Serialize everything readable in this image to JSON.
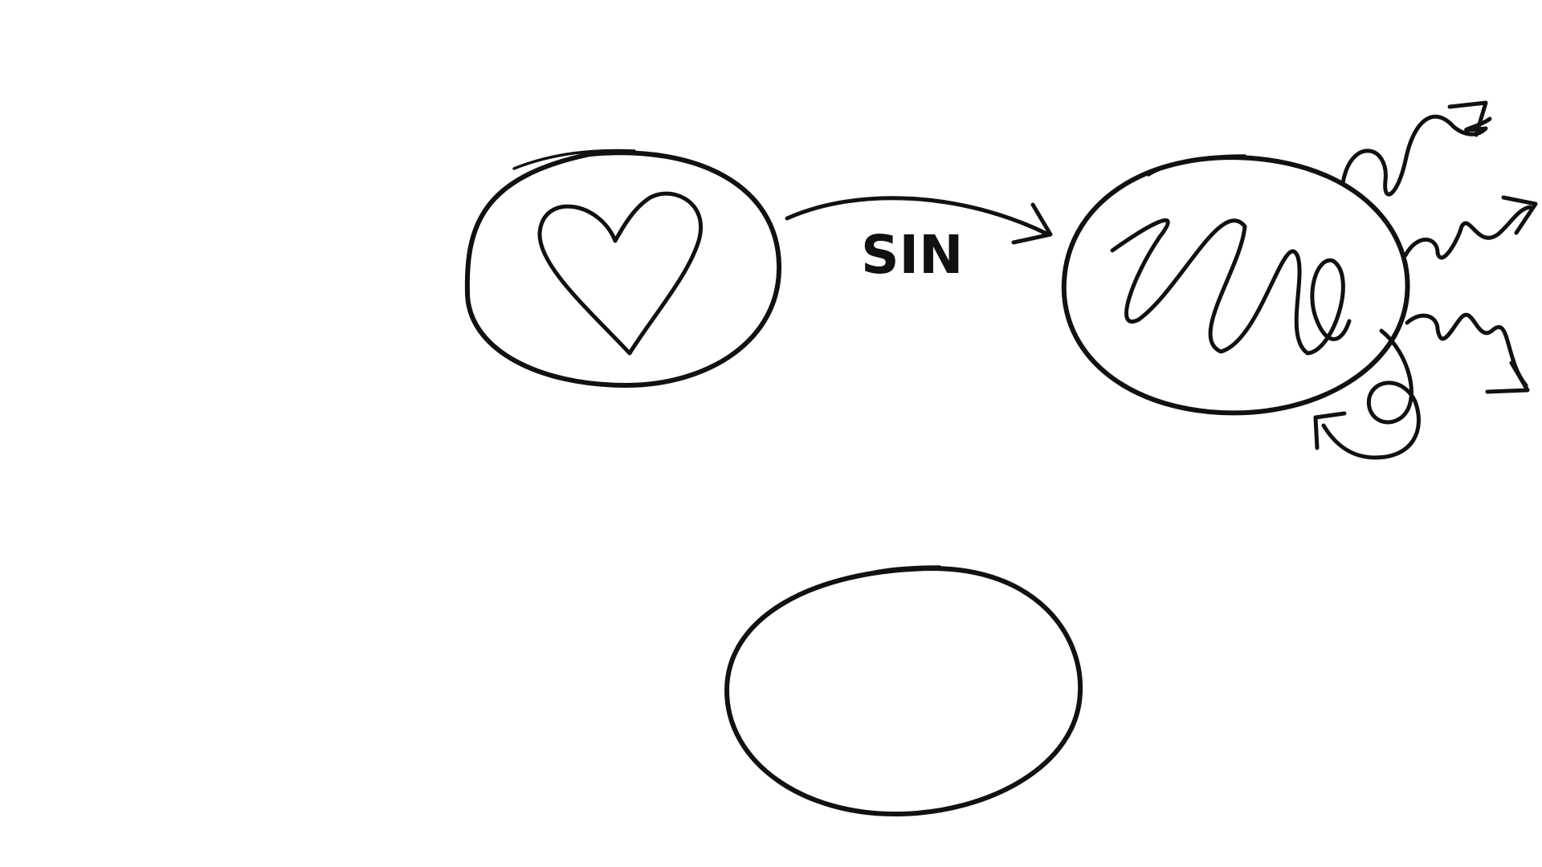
{
  "diagram": {
    "arrow_label": "SIN",
    "nodes": [
      {
        "id": "pure-heart-circle",
        "icon": "heart-icon"
      },
      {
        "id": "scribbled-heart-circle",
        "icon": "scribble-icon"
      },
      {
        "id": "empty-circle",
        "icon": ""
      }
    ],
    "ink_color": "#111111",
    "background_color": "#ffffff"
  }
}
